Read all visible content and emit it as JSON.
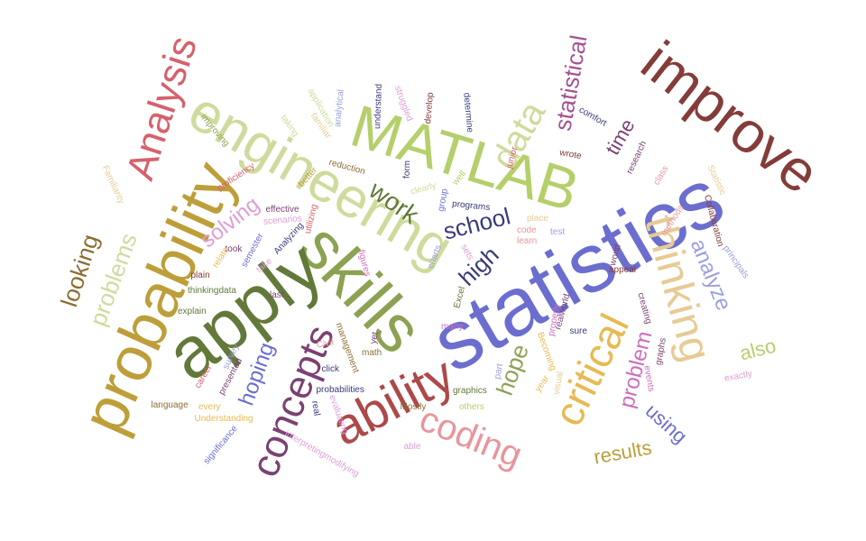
{
  "word_cloud": {
    "words": [
      {
        "text": "statistics",
        "color": "#6b6ecf"
      },
      {
        "text": "skills",
        "color": "#8ca252"
      },
      {
        "text": "apply",
        "color": "#637939"
      },
      {
        "text": "probability",
        "color": "#bd9e39"
      },
      {
        "text": "engineering",
        "color": "#cedb9c"
      },
      {
        "text": "MATLAB",
        "color": "#b5cf6b"
      },
      {
        "text": "improve",
        "color": "#843c39"
      },
      {
        "text": "ability",
        "color": "#ad494a"
      },
      {
        "text": "thinking",
        "color": "#e7cb94"
      },
      {
        "text": "Analysis",
        "color": "#d6616b"
      },
      {
        "text": "critical",
        "color": "#e7ba52"
      },
      {
        "text": "concepts",
        "color": "#7b4173"
      },
      {
        "text": "coding",
        "color": "#e7969c"
      },
      {
        "text": "data",
        "color": "#cedb9c"
      },
      {
        "text": "statistical",
        "color": "#a55194"
      },
      {
        "text": "problems",
        "color": "#cedb9c"
      },
      {
        "text": "looking",
        "color": "#8c6d31"
      },
      {
        "text": "work",
        "color": "#637939"
      },
      {
        "text": "school",
        "color": "#393b79"
      },
      {
        "text": "high",
        "color": "#393b79"
      },
      {
        "text": "hope",
        "color": "#8ca252"
      },
      {
        "text": "solving",
        "color": "#de9ed6"
      },
      {
        "text": "hoping",
        "color": "#6b6ecf"
      },
      {
        "text": "analyze",
        "color": "#9c9ede"
      },
      {
        "text": "problem",
        "color": "#ce6dbd"
      },
      {
        "text": "using",
        "color": "#6b6ecf"
      },
      {
        "text": "results",
        "color": "#bd9e39"
      },
      {
        "text": "also",
        "color": "#b5cf6b"
      },
      {
        "text": "time",
        "color": "#7b4173"
      },
      {
        "text": "improving",
        "color": "#8ca252"
      },
      {
        "text": "taking",
        "color": "#cedb9c"
      },
      {
        "text": "familiar",
        "color": "#e7cb94"
      },
      {
        "text": "application",
        "color": "#cedb9c"
      },
      {
        "text": "analytical",
        "color": "#9c9ede"
      },
      {
        "text": "understand",
        "color": "#393b79"
      },
      {
        "text": "struggled",
        "color": "#de9ed6"
      },
      {
        "text": "develop",
        "color": "#843c39"
      },
      {
        "text": "determine",
        "color": "#393b79"
      },
      {
        "text": "comfort",
        "color": "#393b79"
      },
      {
        "text": "wrote",
        "color": "#843c39"
      },
      {
        "text": "junior",
        "color": "#d6616b"
      },
      {
        "text": "research",
        "color": "#7b4173"
      },
      {
        "text": "class",
        "color": "#e7969c"
      },
      {
        "text": "Statistic",
        "color": "#e7cb94"
      },
      {
        "text": "Familiarity",
        "color": "#e7cb94"
      },
      {
        "text": "proficiency",
        "color": "#d6616b"
      },
      {
        "text": "better",
        "color": "#bd9e39"
      },
      {
        "text": "reduction",
        "color": "#8c6d31"
      },
      {
        "text": "clearly",
        "color": "#cedb9c"
      },
      {
        "text": "well",
        "color": "#b5cf6b"
      },
      {
        "text": "form",
        "color": "#393b79"
      },
      {
        "text": "group",
        "color": "#6b6ecf"
      },
      {
        "text": "programs",
        "color": "#393b79"
      },
      {
        "text": "effective",
        "color": "#7b4173"
      },
      {
        "text": "utilizing",
        "color": "#d6616b"
      },
      {
        "text": "scenarios",
        "color": "#de9ed6"
      },
      {
        "text": "Analyzing",
        "color": "#393b79"
      },
      {
        "text": "semester",
        "color": "#6b6ecf"
      },
      {
        "text": "took",
        "color": "#7b4173"
      },
      {
        "text": "relate",
        "color": "#e7ba52"
      },
      {
        "text": "take",
        "color": "#de9ed6"
      },
      {
        "text": "plain",
        "color": "#843c39"
      },
      {
        "text": "thinkingdata",
        "color": "#637939"
      },
      {
        "text": "last",
        "color": "#7b4173"
      },
      {
        "text": "figures",
        "color": "#ce6dbd"
      },
      {
        "text": "sets",
        "color": "#de9ed6"
      },
      {
        "text": "charts",
        "color": "#9c9ede"
      },
      {
        "text": "Excel",
        "color": "#637939"
      },
      {
        "text": "place",
        "color": "#e7cb94"
      },
      {
        "text": "code",
        "color": "#e7969c"
      },
      {
        "text": "learn",
        "color": "#e7969c"
      },
      {
        "text": "test",
        "color": "#9c9ede"
      },
      {
        "text": "world",
        "color": "#7b4173"
      },
      {
        "text": "appeal",
        "color": "#843c39"
      },
      {
        "text": "methods",
        "color": "#e7969c"
      },
      {
        "text": "Collaboration",
        "color": "#843c39"
      },
      {
        "text": "principals",
        "color": "#9c9ede"
      },
      {
        "text": "creating",
        "color": "#7b4173"
      },
      {
        "text": "realworld",
        "color": "#7b4173"
      },
      {
        "text": "properly",
        "color": "#ce6dbd"
      },
      {
        "text": "sure",
        "color": "#393b79"
      },
      {
        "text": "graphs",
        "color": "#7b4173"
      },
      {
        "text": "events",
        "color": "#ce6dbd"
      },
      {
        "text": "exactly",
        "color": "#de9ed6"
      },
      {
        "text": "explain",
        "color": "#637939"
      },
      {
        "text": "survey",
        "color": "#9c9ede"
      },
      {
        "text": "career",
        "color": "#d6616b"
      },
      {
        "text": "presented",
        "color": "#7b4173"
      },
      {
        "text": "click",
        "color": "#393b79"
      },
      {
        "text": "Civil",
        "color": "#e7969c"
      },
      {
        "text": "management",
        "color": "#8c6d31"
      },
      {
        "text": "math",
        "color": "#8c6d31"
      },
      {
        "text": "yet",
        "color": "#7b4173"
      },
      {
        "text": "many",
        "color": "#ce6dbd"
      },
      {
        "text": "part",
        "color": "#9c9ede"
      },
      {
        "text": "Becoming",
        "color": "#e7ba52"
      },
      {
        "text": "visual",
        "color": "#e7cb94"
      },
      {
        "text": "year",
        "color": "#e7ba52"
      },
      {
        "text": "language",
        "color": "#8c6d31"
      },
      {
        "text": "every",
        "color": "#e7ba52"
      },
      {
        "text": "Understanding",
        "color": "#e7ba52"
      },
      {
        "text": "probabilities",
        "color": "#393b79"
      },
      {
        "text": "real",
        "color": "#393b79"
      },
      {
        "text": "evaluating",
        "color": "#de9ed6"
      },
      {
        "text": "Mostly",
        "color": "#8c6d31"
      },
      {
        "text": "graphics",
        "color": "#637939"
      },
      {
        "text": "others",
        "color": "#b5cf6b"
      },
      {
        "text": "significance",
        "color": "#6b6ecf"
      },
      {
        "text": "interpretingmodifying",
        "color": "#de9ed6"
      },
      {
        "text": "able",
        "color": "#de9ed6"
      }
    ]
  }
}
